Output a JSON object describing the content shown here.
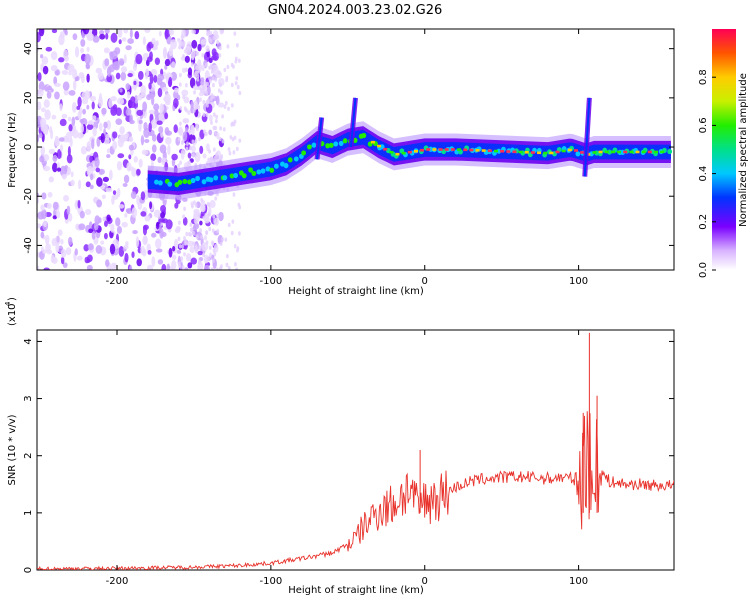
{
  "title": "GN04.2024.003.23.02.G26",
  "chart_data": [
    {
      "type": "heatmap",
      "xlabel": "Height of straight line (km)",
      "ylabel": "Frequency (Hz)",
      "xlim": [
        -252,
        162
      ],
      "ylim": [
        -50,
        48
      ],
      "xticks": [
        -200,
        -100,
        0,
        100
      ],
      "yticks": [
        -40,
        -20,
        0,
        20,
        40
      ],
      "colorbar": {
        "label": "Normalized spectral amplitude",
        "range": [
          0,
          1
        ],
        "ticks": [
          "0.0",
          "0.2",
          "0.4",
          "0.6",
          "0.8"
        ]
      },
      "ridge": {
        "x": [
          -180,
          -160,
          -140,
          -120,
          -100,
          -90,
          -80,
          -70,
          -60,
          -50,
          -40,
          -35,
          -30,
          -20,
          -10,
          0,
          20,
          40,
          60,
          80,
          95,
          100,
          105,
          110,
          130,
          160
        ],
        "frequency": [
          -14,
          -15,
          -13,
          -11,
          -9,
          -7,
          -3,
          2,
          0,
          3,
          4,
          2,
          0,
          -3,
          -2,
          -1,
          -1,
          -1.5,
          -2,
          -2.5,
          -1,
          -2,
          -3,
          -2,
          -2,
          -2
        ]
      },
      "spikes": [
        {
          "x": -70,
          "from": -5,
          "to": 12
        },
        {
          "x": -48,
          "from": 0,
          "to": 20
        },
        {
          "x": 104,
          "from": -12,
          "to": 20
        }
      ]
    },
    {
      "type": "line",
      "xlabel": "Height of straight line (km)",
      "ylabel": "SNR (10 * v/v)",
      "yscale_label": "(x10",
      "yscale_exponent": "4",
      "xlim": [
        -252,
        162
      ],
      "ylim": [
        0,
        4.2
      ],
      "xticks": [
        -200,
        -100,
        0,
        100
      ],
      "yticks": [
        0,
        1,
        2,
        3,
        4
      ],
      "series": [
        {
          "color": "#e8322b",
          "x": [
            -252,
            -200,
            -150,
            -120,
            -100,
            -80,
            -60,
            -50,
            -45,
            -40,
            -35,
            -30,
            -25,
            -20,
            -15,
            -10,
            -5,
            0,
            10,
            20,
            30,
            40,
            50,
            60,
            70,
            80,
            90,
            95,
            100,
            103,
            106,
            108,
            110,
            112,
            115,
            120,
            130,
            140,
            150,
            162
          ],
          "values": [
            0.02,
            0.03,
            0.05,
            0.08,
            0.12,
            0.2,
            0.3,
            0.45,
            0.55,
            0.75,
            0.9,
            1.05,
            1.1,
            1.15,
            1.3,
            1.45,
            1.1,
            1.2,
            1.3,
            1.45,
            1.55,
            1.6,
            1.62,
            1.63,
            1.62,
            1.6,
            1.62,
            1.6,
            1.58,
            1.7,
            2.6,
            1.4,
            1.1,
            2.7,
            1.7,
            1.55,
            1.5,
            1.5,
            1.48,
            1.48
          ]
        }
      ]
    }
  ]
}
